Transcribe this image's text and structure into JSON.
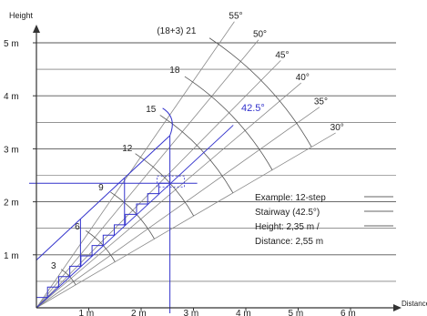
{
  "chart_data": {
    "type": "diagram",
    "ylabel": "Height",
    "xlabel": "Distance",
    "y_ticks": [
      "1 m",
      "2 m",
      "3 m",
      "4 m",
      "5 m"
    ],
    "x_ticks": [
      "1 m",
      "2 m",
      "3 m",
      "4 m",
      "5 m",
      "6 m"
    ],
    "angle_lines": [
      {
        "label": "30°",
        "deg": 30
      },
      {
        "label": "35°",
        "deg": 35
      },
      {
        "label": "40°",
        "deg": 40
      },
      {
        "label": "45°",
        "deg": 45
      },
      {
        "label": "50°",
        "deg": 50
      },
      {
        "label": "55°",
        "deg": 55
      }
    ],
    "step_counts": [
      {
        "label": "3",
        "steps": 3
      },
      {
        "label": "6",
        "steps": 6
      },
      {
        "label": "9",
        "steps": 9
      },
      {
        "label": "12",
        "steps": 12
      },
      {
        "label": "15",
        "steps": 15
      },
      {
        "label": "18",
        "steps": 18
      },
      {
        "label": "(18+3) 21",
        "steps": 21
      }
    ],
    "example_angle": {
      "label": "42.5°",
      "deg": 42.5
    },
    "example": {
      "lines": [
        "Example: 12-step",
        "Stairway (42.5°)",
        "Height: 2,35 m /",
        "Distance: 2,55 m"
      ],
      "height_m": 2.35,
      "distance_m": 2.55,
      "steps": 12
    },
    "colors": {
      "highlight": "#3333cc",
      "grid": "#555555",
      "rays": "#888888",
      "text": "#222222"
    }
  }
}
